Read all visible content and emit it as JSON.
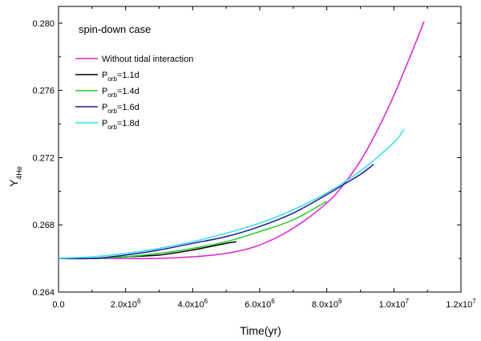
{
  "chart_data": {
    "type": "line",
    "annotation": "spin-down case",
    "xlabel": "Time(yr)",
    "ylabel_main": "Y",
    "ylabel_sub": "4He",
    "xlim": [
      0,
      12000000
    ],
    "ylim": [
      0.264,
      0.281
    ],
    "x_ticks": [
      {
        "value": 0,
        "label": "0.0"
      },
      {
        "value": 2000000,
        "mant": "2.0x10",
        "exp": "6"
      },
      {
        "value": 4000000,
        "mant": "4.0x10",
        "exp": "6"
      },
      {
        "value": 6000000,
        "mant": "6.0x10",
        "exp": "6"
      },
      {
        "value": 8000000,
        "mant": "8.0x10",
        "exp": "6"
      },
      {
        "value": 10000000,
        "mant": "1.0x10",
        "exp": "7"
      },
      {
        "value": 12000000,
        "mant": "1.2x10",
        "exp": "7"
      }
    ],
    "y_ticks": [
      {
        "value": 0.264,
        "label": "0.264"
      },
      {
        "value": 0.268,
        "label": "0.268"
      },
      {
        "value": 0.272,
        "label": "0.272"
      },
      {
        "value": 0.276,
        "label": "0.276"
      },
      {
        "value": 0.28,
        "label": "0.280"
      }
    ],
    "series": [
      {
        "name": "Without tidal interaction",
        "color": "#e020d8",
        "x": [
          0,
          1000000,
          2000000,
          3000000,
          4000000,
          5000000,
          6000000,
          7000000,
          8000000,
          8500000,
          9000000,
          9500000,
          10000000,
          10500000,
          10900000
        ],
        "y": [
          0.266,
          0.266,
          0.266,
          0.266,
          0.2661,
          0.2663,
          0.2668,
          0.2678,
          0.2693,
          0.2704,
          0.2718,
          0.2736,
          0.2757,
          0.2781,
          0.2801
        ]
      },
      {
        "name": "P_orb=1.1d",
        "label_main": "P",
        "label_sub": "orb",
        "label_rest": "=1.1d",
        "color": "#000000",
        "x": [
          0,
          1000000,
          2000000,
          3000000,
          4000000,
          4500000,
          5000000,
          5300000
        ],
        "y": [
          0.266,
          0.266,
          0.2661,
          0.2662,
          0.2665,
          0.2667,
          0.2669,
          0.267
        ]
      },
      {
        "name": "P_orb=1.4d",
        "label_main": "P",
        "label_sub": "orb",
        "label_rest": "=1.4d",
        "color": "#22cc22",
        "x": [
          0,
          1000000,
          2000000,
          3000000,
          4000000,
          5000000,
          6000000,
          7000000,
          8000000
        ],
        "y": [
          0.266,
          0.266,
          0.2661,
          0.2663,
          0.2666,
          0.267,
          0.2676,
          0.2683,
          0.2694
        ]
      },
      {
        "name": "P_orb=1.6d",
        "label_main": "P",
        "label_sub": "orb",
        "label_rest": "=1.6d",
        "color": "#1a1a9a",
        "x": [
          0,
          1000000,
          2000000,
          3000000,
          4000000,
          5000000,
          6000000,
          7000000,
          8000000,
          8500000,
          9000000,
          9400000
        ],
        "y": [
          0.266,
          0.266,
          0.2662,
          0.2665,
          0.2669,
          0.2673,
          0.2679,
          0.2687,
          0.2698,
          0.2704,
          0.271,
          0.2716
        ]
      },
      {
        "name": "P_orb=1.8d",
        "label_main": "P",
        "label_sub": "orb",
        "label_rest": "=1.8d",
        "color": "#30e0e8",
        "x": [
          0,
          1000000,
          2000000,
          3000000,
          4000000,
          5000000,
          6000000,
          7000000,
          8000000,
          9000000,
          10000000,
          10300000
        ],
        "y": [
          0.266,
          0.2661,
          0.2663,
          0.2666,
          0.267,
          0.2675,
          0.2681,
          0.2689,
          0.2699,
          0.2712,
          0.2729,
          0.2737
        ]
      }
    ]
  }
}
